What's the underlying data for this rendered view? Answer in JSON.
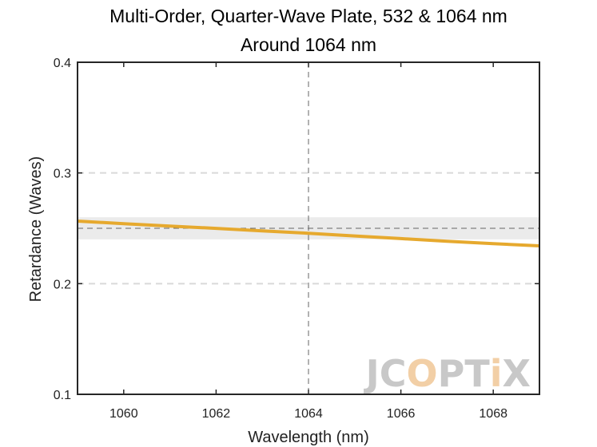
{
  "chart_data": {
    "type": "line",
    "title": "Multi-Order, Quarter-Wave Plate, 532 & 1064 nm",
    "subtitle": "Around 1064 nm",
    "xlabel": "Wavelength (nm)",
    "ylabel": "Retardance (Waves)",
    "xlim": [
      1059,
      1069
    ],
    "ylim": [
      0.1,
      0.4
    ],
    "xticks": [
      1060,
      1062,
      1064,
      1066,
      1068
    ],
    "yticks": [
      0.1,
      0.2,
      0.3,
      0.4
    ],
    "grid": "horizontal dashed",
    "series": [
      {
        "color": "#E6A92E",
        "x": [
          1059,
          1060,
          1061,
          1062,
          1063,
          1064,
          1065,
          1066,
          1067,
          1068,
          1069
        ],
        "y": [
          0.2565,
          0.2542,
          0.252,
          0.2499,
          0.2477,
          0.2455,
          0.2431,
          0.2407,
          0.2383,
          0.2361,
          0.2341
        ]
      }
    ],
    "target_value": 0.25,
    "tolerance_band": [
      0.24,
      0.26
    ],
    "center_wavelength": 1064
  },
  "watermark": {
    "letters": [
      "J",
      "C",
      "O",
      "P",
      "T",
      "i",
      "X"
    ],
    "colors": [
      "#C8C8C8",
      "#C8C8C8",
      "#F2CFA6",
      "#C8C8C8",
      "#C8C8C8",
      "#F2CFA6",
      "#C8C8C8"
    ]
  }
}
